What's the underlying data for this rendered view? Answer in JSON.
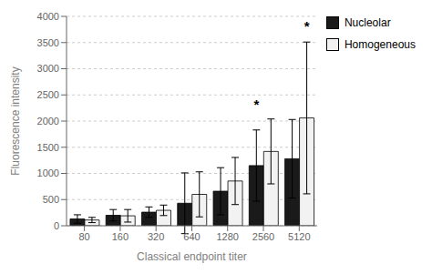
{
  "chart_data": {
    "type": "bar",
    "categories": [
      "80",
      "160",
      "320",
      "640",
      "1280",
      "2560",
      "5120"
    ],
    "series": [
      {
        "name": "Nucleolar",
        "color": "#1a1a1a",
        "values": [
          130,
          200,
          260,
          430,
          660,
          1150,
          1280
        ],
        "errors": [
          80,
          110,
          100,
          580,
          450,
          680,
          750
        ]
      },
      {
        "name": "Homogeneous",
        "color": "#f2f2f2",
        "values": [
          110,
          190,
          295,
          600,
          855,
          1420,
          2060
        ],
        "errors": [
          50,
          120,
          100,
          430,
          450,
          620,
          1450
        ]
      }
    ],
    "xlabel": "Classical endpoint titer",
    "ylabel": "Fluorescence intensity",
    "ylim": [
      0,
      4000
    ],
    "yticks": [
      0,
      500,
      1000,
      1500,
      2000,
      2500,
      3000,
      3500,
      4000
    ],
    "grid": true,
    "legend": "right",
    "annotations": [
      {
        "text": "*",
        "category": "2560",
        "series": "Nucleolar",
        "y": 2220
      },
      {
        "text": "*",
        "category": "5120",
        "series": "Homogeneous",
        "y": 3720
      }
    ]
  }
}
